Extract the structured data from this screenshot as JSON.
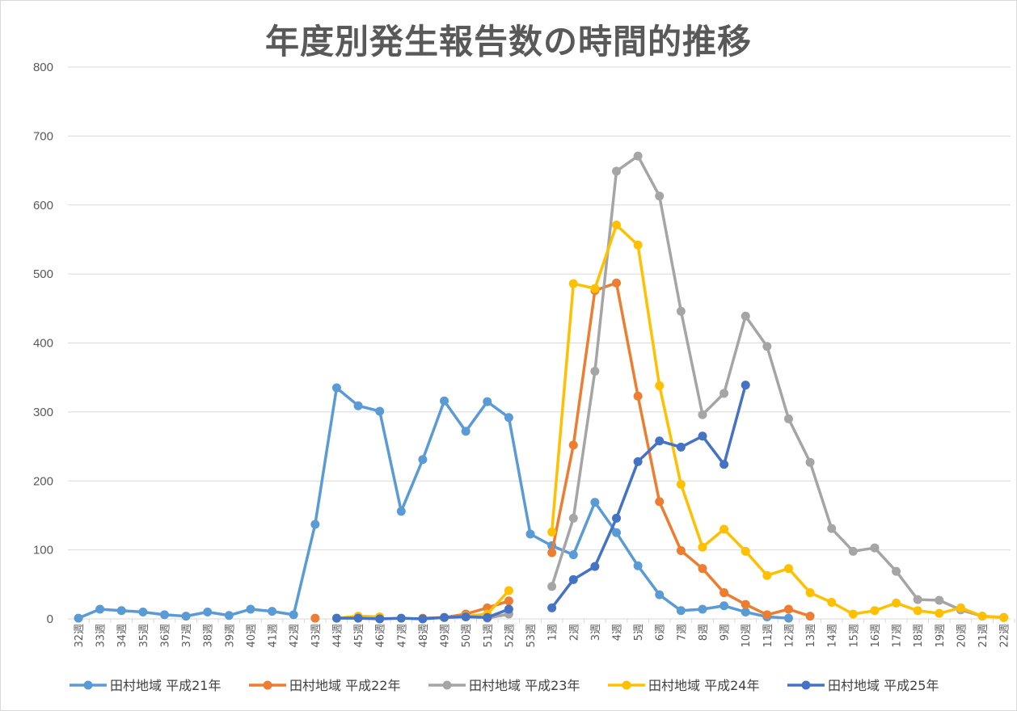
{
  "chart_data": {
    "type": "line",
    "title": "年度別発生報告数の時間的推移",
    "xlabel": "",
    "ylabel": "",
    "ylim": [
      0,
      800
    ],
    "yticks": [
      0,
      100,
      200,
      300,
      400,
      500,
      600,
      700,
      800
    ],
    "grid": "horizontal",
    "legend_position": "bottom",
    "categories": [
      "32週",
      "33週",
      "34週",
      "35週",
      "36週",
      "37週",
      "38週",
      "39週",
      "40週",
      "41週",
      "42週",
      "43週",
      "44週",
      "45週",
      "46週",
      "47週",
      "48週",
      "49週",
      "50週",
      "51週",
      "52週",
      "53週",
      "1週",
      "2週",
      "3週",
      "4週",
      "5週",
      "6週",
      "7週",
      "8週",
      "9週",
      "10週",
      "11週",
      "12週",
      "13週",
      "14週",
      "15週",
      "16週",
      "17週",
      "18週",
      "19週",
      "20週",
      "21週",
      "22週"
    ],
    "series": [
      {
        "name": "田村地域 平成21年",
        "color": "#5B9BD5",
        "values": [
          1,
          14,
          12,
          10,
          6,
          4,
          10,
          5,
          14,
          11,
          6,
          137,
          335,
          309,
          301,
          156,
          231,
          316,
          272,
          315,
          292,
          123,
          106,
          93,
          169,
          125,
          77,
          35,
          12,
          14,
          19,
          10,
          3,
          1,
          null,
          null,
          null,
          null,
          null,
          null,
          null,
          null,
          null,
          null
        ]
      },
      {
        "name": "田村地域 平成22年",
        "color": "#ED7D31",
        "values": [
          null,
          null,
          null,
          null,
          null,
          null,
          null,
          null,
          null,
          null,
          null,
          1,
          null,
          null,
          null,
          null,
          1,
          2,
          7,
          16,
          26,
          null,
          96,
          252,
          476,
          487,
          323,
          170,
          99,
          73,
          38,
          21,
          6,
          14,
          4,
          null,
          null,
          null,
          null,
          null,
          null,
          null,
          null,
          null
        ]
      },
      {
        "name": "田村地域 平成23年",
        "color": "#A5A5A5",
        "values": [
          null,
          null,
          null,
          null,
          null,
          null,
          null,
          null,
          null,
          null,
          null,
          null,
          null,
          null,
          null,
          null,
          null,
          null,
          null,
          1,
          7,
          null,
          47,
          146,
          359,
          649,
          671,
          613,
          446,
          296,
          327,
          439,
          395,
          290,
          227,
          131,
          98,
          103,
          69,
          28,
          27,
          13,
          4,
          2
        ]
      },
      {
        "name": "田村地域 平成24年",
        "color": "#FFC000",
        "values": [
          null,
          null,
          null,
          null,
          null,
          null,
          null,
          null,
          null,
          null,
          null,
          null,
          1,
          4,
          3,
          null,
          null,
          null,
          4,
          7,
          41,
          null,
          126,
          486,
          479,
          571,
          542,
          338,
          195,
          104,
          130,
          98,
          63,
          73,
          38,
          24,
          7,
          12,
          23,
          12,
          8,
          16,
          4,
          2
        ]
      },
      {
        "name": "田村地域 平成25年",
        "color": "#4472C4",
        "values": [
          null,
          null,
          null,
          null,
          null,
          null,
          null,
          null,
          null,
          null,
          null,
          null,
          1,
          1,
          0,
          1,
          0,
          2,
          3,
          2,
          14,
          null,
          16,
          57,
          76,
          146,
          228,
          258,
          249,
          265,
          224,
          339,
          null,
          null,
          null,
          null,
          null,
          null,
          null,
          null,
          null,
          null,
          null,
          null
        ]
      }
    ]
  }
}
